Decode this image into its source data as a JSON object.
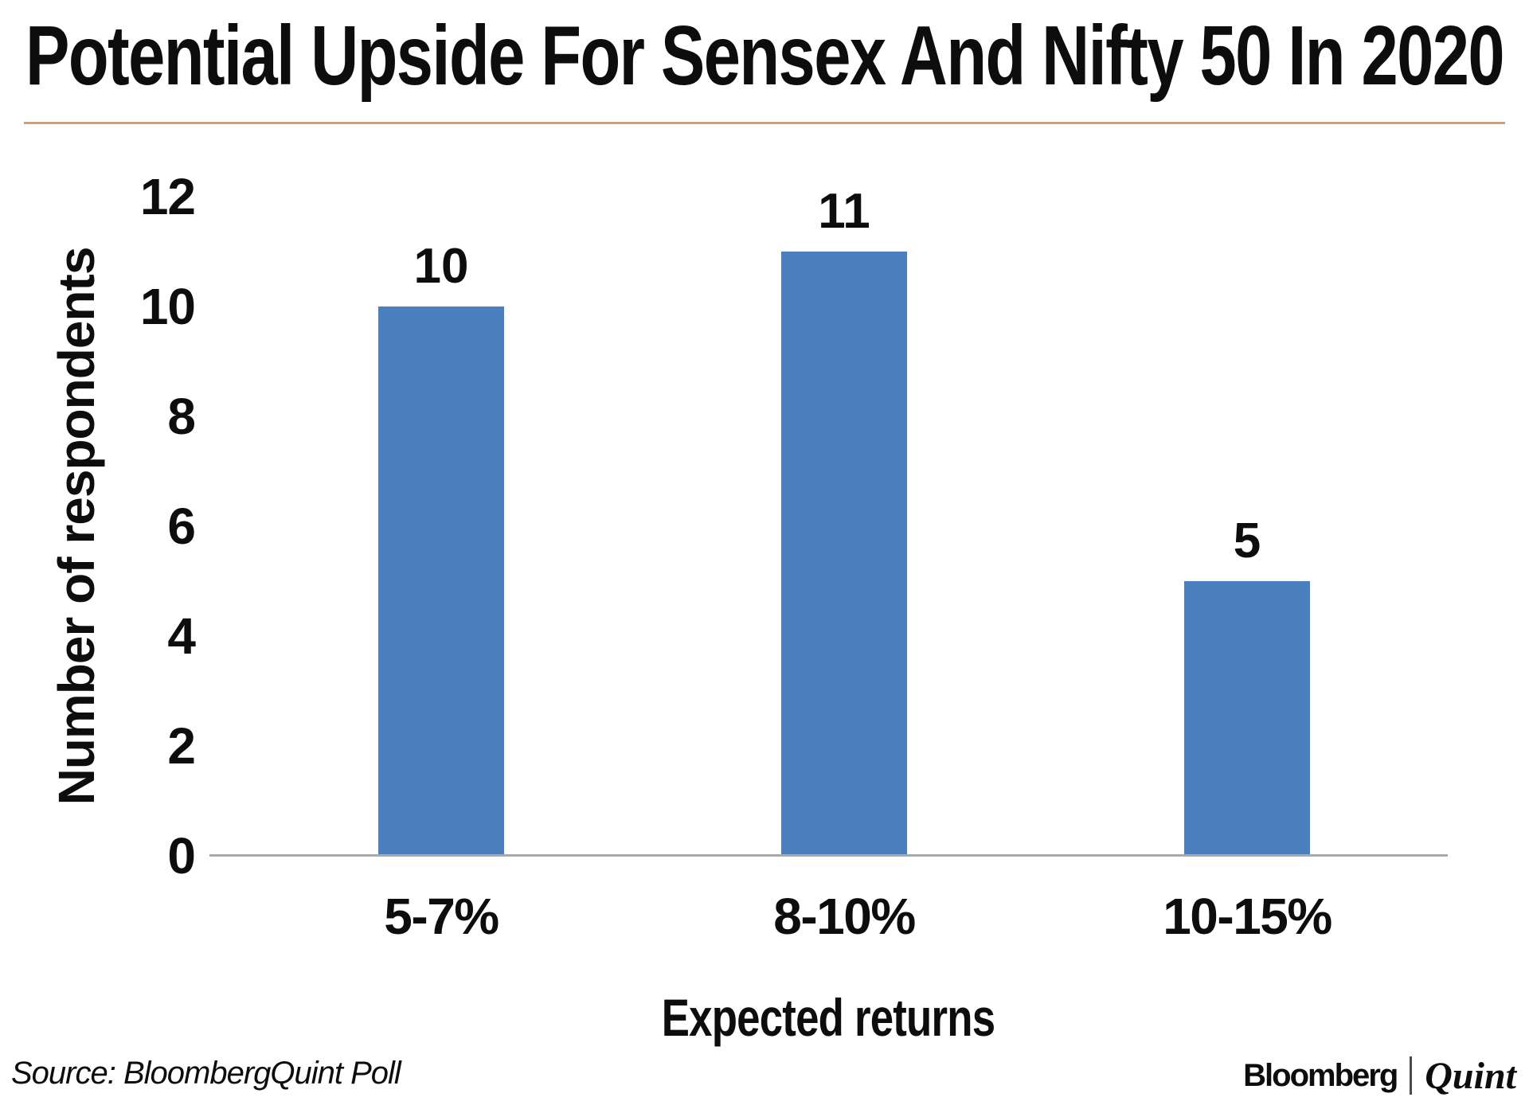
{
  "chart_data": {
    "type": "bar",
    "title": "Potential Upside For Sensex And Nifty 50 In 2020",
    "categories": [
      "5-7%",
      "8-10%",
      "10-15%"
    ],
    "values": [
      10,
      11,
      5
    ],
    "data_labels": [
      "10",
      "11",
      "5"
    ],
    "xlabel": "Expected returns",
    "ylabel": "Number of respondents",
    "ylim": [
      0,
      12
    ],
    "yticks": [
      0,
      2,
      4,
      6,
      8,
      10,
      12
    ],
    "grid": false,
    "legend": "none",
    "bar_color": "#4c7fbe"
  },
  "header": {
    "divider_color": "#e09a64"
  },
  "axis": {
    "line_color": "#a9a9a9"
  },
  "footer": {
    "source": "Source: BloombergQuint Poll",
    "logo_bloomberg": "Bloomberg",
    "logo_quint": "Quint"
  }
}
